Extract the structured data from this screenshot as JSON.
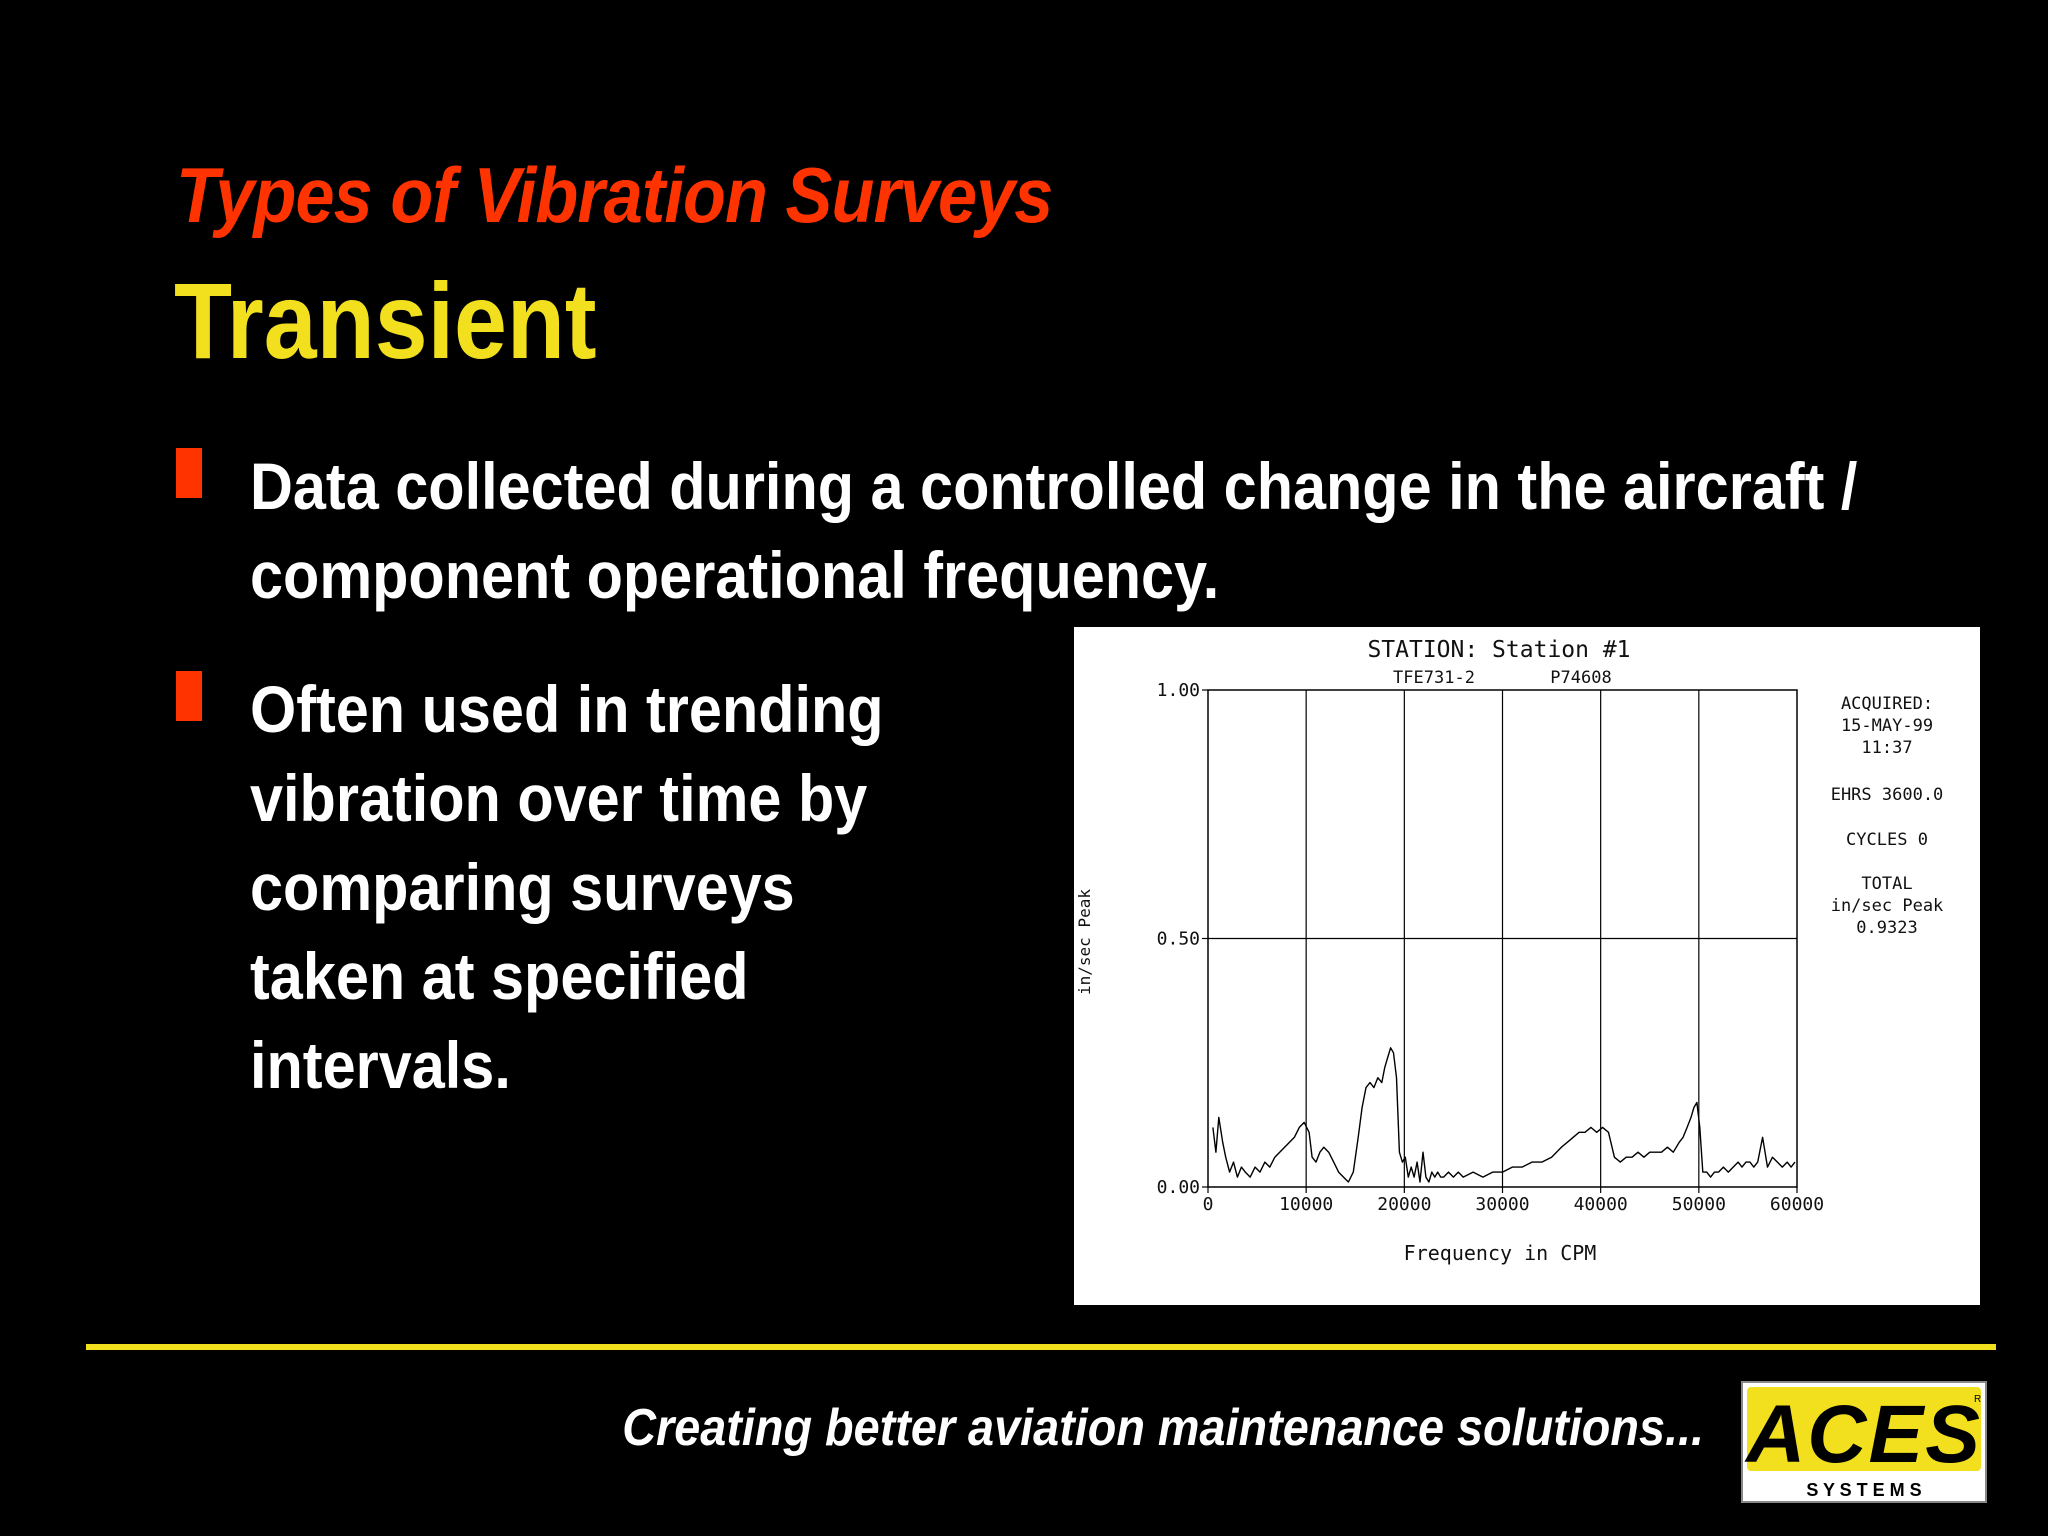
{
  "slide": {
    "kicker": "Types of Vibration Surveys",
    "title": "Transient",
    "bullets": [
      "Data collected during a controlled change in the aircraft / component operational frequency.",
      "Often used in trending vibration over time by comparing surveys taken at specified intervals."
    ],
    "tagline": "Creating better aviation maintenance solutions...",
    "logo": {
      "text": "ACES",
      "subtext": "S Y S T E M S",
      "mark": "R",
      "bg_color": "#f2e01f"
    }
  },
  "colors": {
    "background": "#000000",
    "accent_red": "#ff3300",
    "accent_yellow": "#f2e01f",
    "text": "#ffffff"
  },
  "chart_data": {
    "type": "line",
    "title": "STATION: Station #1",
    "subtitle_left": "TFE731-2",
    "subtitle_right": "P74608",
    "xlabel": "Frequency in CPM",
    "ylabel": "in/sec Peak",
    "xlim": [
      0,
      60000
    ],
    "ylim": [
      0,
      1.0
    ],
    "x_ticks": [
      0,
      10000,
      20000,
      30000,
      40000,
      50000,
      60000
    ],
    "x_tick_labels": [
      "0",
      "10000",
      "20000",
      "30000",
      "40000",
      "50000",
      "60000"
    ],
    "y_ticks": [
      0,
      0.5,
      1.0
    ],
    "y_tick_labels": [
      "0.00",
      "0.50",
      "1.00"
    ],
    "grid": true,
    "annotations": [
      "ACQUIRED:",
      "15-MAY-99",
      "11:37",
      "EHRS 3600.0",
      "CYCLES 0",
      "TOTAL",
      "in/sec Peak",
      "0.9323"
    ],
    "series": [
      {
        "x": [
          500,
          800,
          1100,
          1500,
          1800,
          2200,
          2600,
          3000,
          3400,
          3800,
          4300,
          4800,
          5300,
          5800,
          6300,
          6800,
          7300,
          7800,
          8300,
          8800,
          9300,
          9800,
          10300,
          10600,
          11000,
          11400,
          11800,
          12300,
          12800,
          13300,
          13800,
          14300,
          14800,
          15300,
          15700,
          16100,
          16500,
          16900,
          17300,
          17700,
          18000,
          18300,
          18600,
          18900,
          19200,
          19500,
          19800,
          20100,
          20400,
          20700,
          21000,
          21300,
          21600,
          21900,
          22200,
          22500,
          22800,
          23100,
          23400,
          23700,
          24000,
          24500,
          25000,
          25500,
          26000,
          27000,
          28000,
          29000,
          30000,
          31000,
          32000,
          33000,
          34000,
          35000,
          36000,
          36600,
          37200,
          37800,
          38400,
          39000,
          39600,
          40200,
          40800,
          41400,
          42000,
          42600,
          43200,
          43800,
          44400,
          45000,
          45600,
          46200,
          46800,
          47400,
          48000,
          48400,
          48800,
          49200,
          49500,
          49800,
          50100,
          50400,
          50800,
          51200,
          51600,
          52000,
          52500,
          53000,
          53500,
          54000,
          54400,
          54800,
          55200,
          55600,
          56000,
          56500,
          57000,
          57500,
          58000,
          58500,
          59000,
          59400,
          59800
        ],
        "values": [
          0.12,
          0.07,
          0.14,
          0.09,
          0.06,
          0.03,
          0.05,
          0.02,
          0.04,
          0.03,
          0.02,
          0.04,
          0.03,
          0.05,
          0.04,
          0.06,
          0.07,
          0.08,
          0.09,
          0.1,
          0.12,
          0.13,
          0.11,
          0.06,
          0.05,
          0.07,
          0.08,
          0.07,
          0.05,
          0.03,
          0.02,
          0.01,
          0.03,
          0.1,
          0.16,
          0.2,
          0.21,
          0.2,
          0.22,
          0.21,
          0.24,
          0.26,
          0.28,
          0.27,
          0.22,
          0.07,
          0.05,
          0.06,
          0.02,
          0.04,
          0.02,
          0.05,
          0.01,
          0.07,
          0.02,
          0.01,
          0.03,
          0.02,
          0.03,
          0.02,
          0.02,
          0.03,
          0.02,
          0.03,
          0.02,
          0.03,
          0.02,
          0.03,
          0.03,
          0.04,
          0.04,
          0.05,
          0.05,
          0.06,
          0.08,
          0.09,
          0.1,
          0.11,
          0.11,
          0.12,
          0.11,
          0.12,
          0.11,
          0.06,
          0.05,
          0.06,
          0.06,
          0.07,
          0.06,
          0.07,
          0.07,
          0.07,
          0.08,
          0.07,
          0.09,
          0.1,
          0.12,
          0.14,
          0.16,
          0.17,
          0.12,
          0.03,
          0.03,
          0.02,
          0.03,
          0.03,
          0.04,
          0.03,
          0.04,
          0.05,
          0.04,
          0.05,
          0.05,
          0.04,
          0.05,
          0.1,
          0.04,
          0.06,
          0.05,
          0.04,
          0.05,
          0.04,
          0.05
        ]
      }
    ]
  }
}
